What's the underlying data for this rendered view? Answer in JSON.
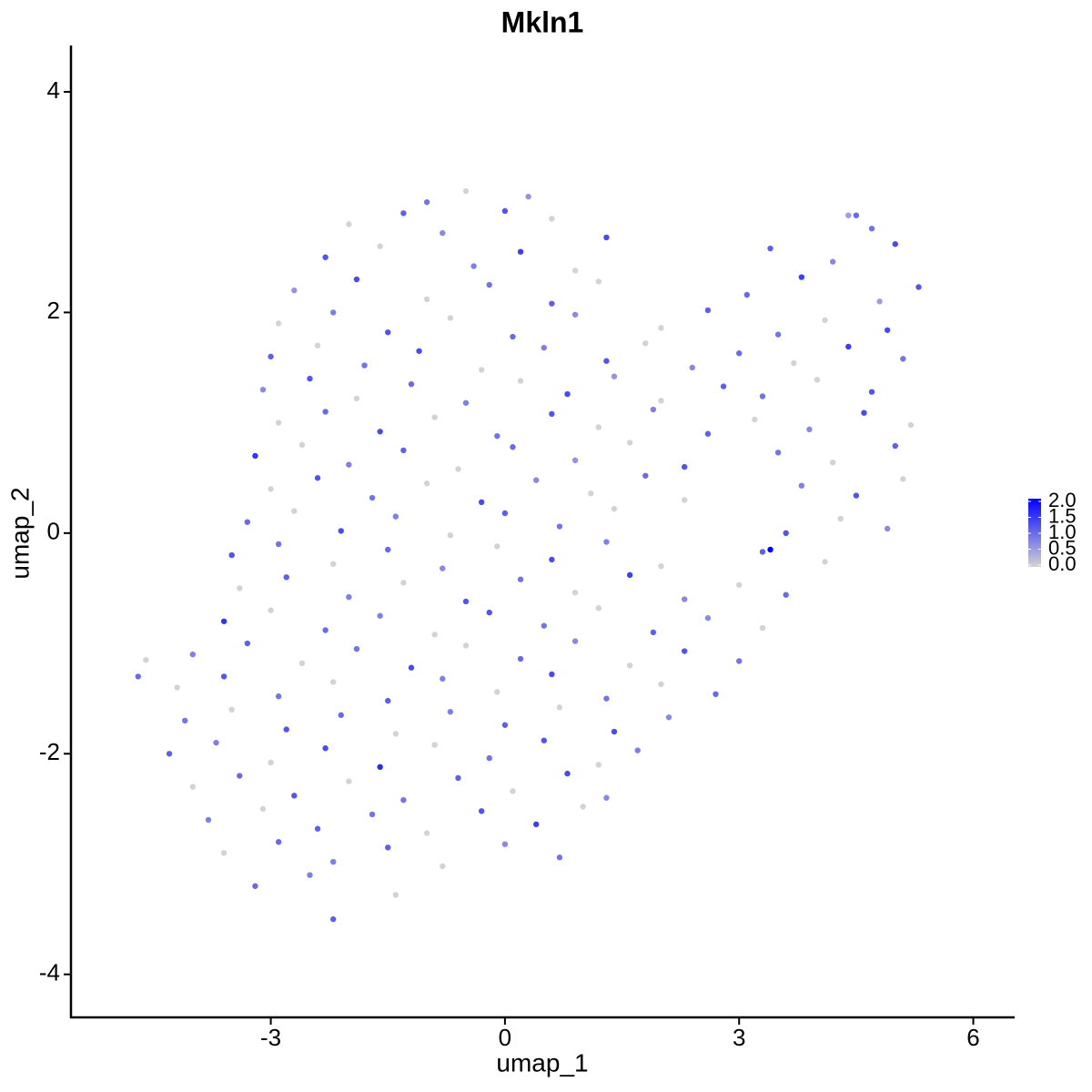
{
  "chart_data": {
    "type": "scatter",
    "title": "Mkln1",
    "x_label": "umap_1",
    "y_label": "umap_2",
    "xlim": [
      -5.56,
      6.53
    ],
    "ylim": [
      -4.39,
      4.42
    ],
    "xticks": [
      -3,
      0,
      3,
      6
    ],
    "yticks": [
      -4,
      -2,
      0,
      2,
      4
    ],
    "color_low": "#d3d3d3",
    "color_high": "#0000ff",
    "clim": [
      0,
      2
    ],
    "cticks": [
      {
        "value": 0,
        "label": "0.0"
      },
      {
        "value": 0.5,
        "label": "0.5"
      },
      {
        "value": 1,
        "label": "1.0"
      },
      {
        "value": 1.5,
        "label": "1.5"
      },
      {
        "value": 2,
        "label": "2.0"
      }
    ],
    "x": [
      -1.0,
      -0.5,
      0.0,
      0.3,
      4.5,
      -2.0,
      -1.3,
      -0.8,
      0.6,
      1.3,
      4.4,
      4.7,
      -2.3,
      -1.6,
      -0.4,
      0.2,
      0.9,
      3.4,
      4.2,
      5.0,
      -2.7,
      -1.9,
      -1.0,
      -0.2,
      0.6,
      1.2,
      3.1,
      3.8,
      4.8,
      5.3,
      -2.9,
      -2.2,
      -1.5,
      -0.7,
      0.1,
      0.9,
      2.0,
      2.6,
      3.5,
      4.1,
      4.9,
      -3.0,
      -2.4,
      -1.8,
      -1.1,
      -0.3,
      0.5,
      1.3,
      1.8,
      2.4,
      3.0,
      3.7,
      4.4,
      5.1,
      -3.1,
      -2.5,
      -1.9,
      -1.2,
      -0.5,
      0.2,
      0.8,
      1.4,
      2.0,
      2.8,
      3.3,
      4.0,
      4.7,
      -2.9,
      -2.3,
      -1.6,
      -0.9,
      -0.1,
      0.6,
      1.2,
      1.9,
      2.6,
      3.2,
      3.9,
      4.6,
      5.2,
      -3.2,
      -2.6,
      -2.0,
      -1.3,
      -0.6,
      0.1,
      0.9,
      1.6,
      2.3,
      3.5,
      4.2,
      5.0,
      -3.0,
      -2.4,
      -1.7,
      -1.0,
      -0.3,
      0.4,
      1.1,
      1.8,
      2.3,
      3.8,
      4.5,
      5.1,
      -3.3,
      -2.7,
      -2.1,
      -1.4,
      -0.7,
      0.0,
      0.7,
      1.4,
      3.6,
      4.3,
      4.9,
      -3.5,
      -2.9,
      -2.2,
      -1.5,
      -0.8,
      -0.1,
      0.6,
      1.3,
      2.0,
      3.3,
      4.1,
      -3.4,
      -2.8,
      -2.0,
      -1.3,
      -0.5,
      0.2,
      0.9,
      1.6,
      2.3,
      3.0,
      3.6,
      -3.6,
      -3.0,
      -2.3,
      -1.6,
      -0.9,
      -0.2,
      0.5,
      1.2,
      1.9,
      2.6,
      3.3,
      -4.0,
      -3.3,
      -2.6,
      -1.9,
      -1.2,
      -0.5,
      0.2,
      0.9,
      1.6,
      2.3,
      3.0,
      -4.7,
      -4.6,
      -4.2,
      -3.6,
      -2.9,
      -2.2,
      -1.5,
      -0.8,
      -0.1,
      0.6,
      1.3,
      2.0,
      2.7,
      -4.1,
      -3.5,
      -2.8,
      -2.1,
      -1.4,
      -0.7,
      0.0,
      0.7,
      1.4,
      2.1,
      -4.3,
      -3.7,
      -3.0,
      -2.3,
      -1.6,
      -0.9,
      -0.2,
      0.5,
      1.2,
      1.7,
      -4.0,
      -3.4,
      -2.7,
      -2.0,
      -1.3,
      -0.6,
      0.1,
      0.8,
      1.3,
      -3.8,
      -3.1,
      -2.4,
      -1.7,
      -1.0,
      -0.3,
      0.4,
      1.0,
      -3.6,
      -2.9,
      -2.2,
      -1.5,
      -0.8,
      0.0,
      0.7,
      -3.2,
      -2.5,
      -1.4,
      -2.2,
      3.4
    ],
    "y": [
      3.0,
      3.1,
      2.92,
      3.05,
      2.88,
      2.8,
      2.9,
      2.72,
      2.85,
      2.68,
      2.88,
      2.76,
      2.5,
      2.6,
      2.42,
      2.55,
      2.38,
      2.58,
      2.46,
      2.62,
      2.2,
      2.3,
      2.12,
      2.25,
      2.08,
      2.28,
      2.16,
      2.32,
      2.1,
      2.23,
      1.9,
      2.0,
      1.82,
      1.95,
      1.78,
      1.98,
      1.86,
      2.02,
      1.8,
      1.93,
      1.84,
      1.6,
      1.7,
      1.52,
      1.65,
      1.48,
      1.68,
      1.56,
      1.72,
      1.5,
      1.63,
      1.54,
      1.69,
      1.58,
      1.3,
      1.4,
      1.22,
      1.35,
      1.18,
      1.38,
      1.26,
      1.42,
      1.2,
      1.33,
      1.24,
      1.39,
      1.28,
      1.0,
      1.1,
      0.92,
      1.05,
      0.88,
      1.08,
      0.96,
      1.12,
      0.9,
      1.03,
      0.94,
      1.09,
      0.98,
      0.7,
      0.8,
      0.62,
      0.75,
      0.58,
      0.78,
      0.66,
      0.82,
      0.6,
      0.73,
      0.64,
      0.79,
      0.4,
      0.5,
      0.32,
      0.45,
      0.28,
      0.48,
      0.36,
      0.52,
      0.3,
      0.43,
      0.34,
      0.49,
      0.1,
      0.2,
      0.02,
      0.15,
      -0.02,
      0.18,
      0.06,
      0.22,
      0,
      0.13,
      0.04,
      -0.2,
      -0.1,
      -0.28,
      -0.15,
      -0.32,
      -0.12,
      -0.24,
      -0.08,
      -0.3,
      -0.17,
      -0.26,
      -0.5,
      -0.4,
      -0.58,
      -0.45,
      -0.62,
      -0.42,
      -0.54,
      -0.38,
      -0.6,
      -0.47,
      -0.56,
      -0.8,
      -0.7,
      -0.88,
      -0.75,
      -0.92,
      -0.72,
      -0.84,
      -0.68,
      -0.9,
      -0.77,
      -0.86,
      -1.1,
      -1.0,
      -1.18,
      -1.05,
      -1.22,
      -1.02,
      -1.14,
      -0.98,
      -1.2,
      -1.07,
      -1.16,
      -1.3,
      -1.15,
      -1.4,
      -1.3,
      -1.48,
      -1.35,
      -1.52,
      -1.32,
      -1.44,
      -1.28,
      -1.5,
      -1.37,
      -1.46,
      -1.7,
      -1.6,
      -1.78,
      -1.65,
      -1.82,
      -1.62,
      -1.74,
      -1.58,
      -1.8,
      -1.67,
      -2.0,
      -1.9,
      -2.08,
      -1.95,
      -2.12,
      -1.92,
      -2.04,
      -1.88,
      -2.1,
      -1.97,
      -2.3,
      -2.2,
      -2.38,
      -2.25,
      -2.42,
      -2.22,
      -2.34,
      -2.18,
      -2.4,
      -2.6,
      -2.5,
      -2.68,
      -2.55,
      -2.72,
      -2.52,
      -2.64,
      -2.48,
      -2.9,
      -2.8,
      -2.98,
      -2.85,
      -3.02,
      -2.82,
      -2.94,
      -3.2,
      -3.1,
      -3.28,
      -3.5,
      -0.15
    ],
    "values": [
      0.9,
      0,
      1.2,
      0.6,
      1.0,
      0,
      1.1,
      0.7,
      0,
      1.3,
      0.5,
      0.9,
      1.2,
      0,
      0.8,
      1.4,
      0,
      1.1,
      0.7,
      1.3,
      0.6,
      1.3,
      0,
      0.9,
      1.1,
      0,
      1.0,
      1.4,
      0.5,
      1.2,
      0,
      0.8,
      1.2,
      0,
      1.0,
      0.7,
      0,
      1.1,
      0.9,
      0,
      1.3,
      1.1,
      0,
      0.9,
      1.3,
      0,
      0.8,
      1.2,
      0,
      0.7,
      1.0,
      0,
      1.4,
      0.9,
      0.7,
      1.2,
      0,
      1.0,
      0.8,
      0,
      1.3,
      0.6,
      0,
      1.1,
      0.9,
      0,
      1.2,
      0,
      1.0,
      1.3,
      0,
      0.9,
      1.2,
      0,
      0.8,
      1.1,
      0,
      0.7,
      1.3,
      0,
      1.5,
      0,
      0.8,
      1.1,
      0,
      1.0,
      0.6,
      0,
      1.2,
      0.9,
      0,
      1.1,
      0,
      1.2,
      0.9,
      0,
      1.3,
      0.7,
      0,
      1.0,
      0,
      0.8,
      1.2,
      0,
      1.0,
      0,
      1.3,
      0.8,
      0,
      1.1,
      0.9,
      0,
      1.2,
      0,
      0.7,
      1.2,
      0.9,
      0,
      1.0,
      0.7,
      0,
      1.3,
      0.8,
      0,
      1.1,
      0,
      0,
      1.1,
      0.8,
      0,
      1.2,
      0.9,
      0,
      1.4,
      0.7,
      0,
      1.0,
      1.5,
      0,
      1.0,
      0.8,
      0,
      1.2,
      0.9,
      0,
      1.1,
      0.7,
      0,
      0.8,
      1.1,
      0,
      0.9,
      1.3,
      0,
      1.0,
      0.7,
      0,
      1.2,
      0.9,
      1.0,
      0,
      0,
      1.2,
      0.9,
      0,
      1.1,
      0.8,
      0,
      1.3,
      0.9,
      0,
      1.0,
      0.9,
      0,
      1.2,
      1.0,
      0,
      0.8,
      1.1,
      0,
      1.3,
      0.7,
      1.1,
      0.8,
      0,
      1.3,
      1.6,
      0,
      0.9,
      1.2,
      0,
      0.8,
      0,
      1.0,
      1.2,
      0,
      0.9,
      1.1,
      0,
      1.3,
      0.7,
      0.8,
      0,
      1.1,
      0.9,
      0,
      1.2,
      1.4,
      0,
      0,
      1.0,
      0.8,
      1.1,
      0,
      0.7,
      0.9,
      1.0,
      0.8,
      0,
      1.1,
      2.0
    ]
  }
}
